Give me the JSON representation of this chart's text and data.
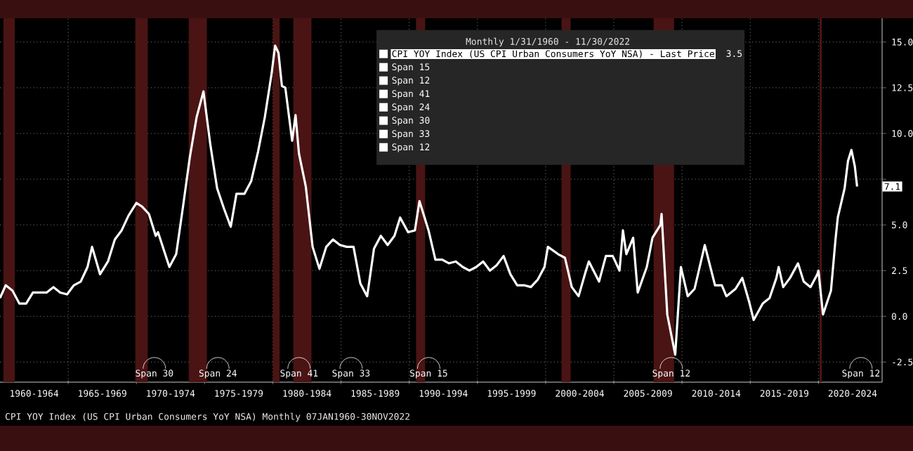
{
  "chart_data": {
    "type": "line",
    "legend_title": "Monthly 1/31/1960 - 11/30/2022",
    "legend": "top",
    "grid": true,
    "xlim": [
      "1960-01",
      "2024-09"
    ],
    "ylim": [
      -3.6,
      16.3
    ],
    "yticks": [
      -2.5,
      {
        "value": 0,
        "label": "0.0"
      },
      2.5,
      {
        "value": 5,
        "label": "5.0"
      },
      {
        "value": 7.5,
        "label": null
      },
      {
        "value": 10,
        "label": "10.0"
      },
      12.5,
      {
        "value": 15,
        "label": "15.0"
      }
    ],
    "xticks": [
      {
        "value": "1965-01",
        "label": null
      },
      {
        "value": "1970-01",
        "label": null
      },
      {
        "value": "1975-01",
        "label": null
      },
      {
        "value": "1980-01",
        "label": null
      },
      {
        "value": "1985-01",
        "label": null
      },
      {
        "value": "1990-01",
        "label": null
      },
      {
        "value": "1995-01",
        "label": null
      },
      {
        "value": "2000-01",
        "label": null
      },
      {
        "value": "2005-01",
        "label": null
      },
      {
        "value": "2010-01",
        "label": null
      },
      {
        "value": "2015-01",
        "label": null
      },
      {
        "value": "2020-01",
        "label": null
      },
      {
        "value": "1962-07",
        "label": "1960-1964"
      },
      {
        "value": "1967-07",
        "label": "1965-1969"
      },
      {
        "value": "1972-07",
        "label": "1970-1974"
      },
      {
        "value": "1977-07",
        "label": "1975-1979"
      },
      {
        "value": "1982-07",
        "label": "1980-1984"
      },
      {
        "value": "1987-07",
        "label": "1985-1989"
      },
      {
        "value": "1992-07",
        "label": "1990-1994"
      },
      {
        "value": "1997-07",
        "label": "1995-1999"
      },
      {
        "value": "2002-07",
        "label": "2000-2004"
      },
      {
        "value": "2007-07",
        "label": "2005-2009"
      },
      {
        "value": "2012-07",
        "label": "2010-2014"
      },
      {
        "value": "2017-07",
        "label": "2015-2019"
      },
      {
        "value": "2022-07",
        "label": "2020-2024"
      }
    ],
    "bands": [
      {
        "axis": "x",
        "from": "1960-04",
        "to": "1961-02",
        "color": "#4a1414"
      },
      {
        "axis": "x",
        "from": "1969-12",
        "to": "1970-11",
        "color": "#4a1414"
      },
      {
        "axis": "x",
        "from": "1973-11",
        "to": "1975-03",
        "color": "#4a1414"
      },
      {
        "axis": "x",
        "from": "1980-01",
        "to": "1980-07",
        "color": "#4a1414"
      },
      {
        "axis": "x",
        "from": "1981-07",
        "to": "1982-11",
        "color": "#4a1414"
      },
      {
        "axis": "x",
        "from": "1990-07",
        "to": "1991-03",
        "color": "#4a1414"
      },
      {
        "axis": "x",
        "from": "2001-03",
        "to": "2001-11",
        "color": "#4a1414"
      },
      {
        "axis": "x",
        "from": "2007-12",
        "to": "2009-06",
        "color": "#4a1414"
      },
      {
        "axis": "x",
        "from": "2020-02",
        "to": "2020-04",
        "color": "#4a1414"
      }
    ],
    "annotations": [
      "CPI YOY Index (US CPI Urban Consumers YoY NSA)  Monthly 07JAN1960-30NOV2022",
      "3.5",
      "Span 15",
      "Span 12",
      "Span 41",
      "Span 24",
      "Span 30",
      "Span 33",
      "Span 12",
      "Span 30",
      "Span 24",
      "Span 41",
      "Span 33",
      "Span 15",
      "Span 12",
      "Span 12",
      "7.1"
    ],
    "series": [
      {
        "name": "CPI YOY Index (US CPI Urban Consumers YoY NSA) - Last Price",
        "color": "#ffffff",
        "x": [
          "1960-01",
          "1960-06",
          "1960-12",
          "1961-06",
          "1961-12",
          "1962-06",
          "1962-12",
          "1963-06",
          "1963-12",
          "1964-06",
          "1964-12",
          "1965-06",
          "1965-12",
          "1966-06",
          "1966-10",
          "1967-05",
          "1967-12",
          "1968-06",
          "1968-12",
          "1969-06",
          "1970-01",
          "1970-06",
          "1970-12",
          "1971-06",
          "1971-08",
          "1972-06",
          "1972-12",
          "1973-06",
          "1973-12",
          "1974-06",
          "1974-12",
          "1975-06",
          "1975-12",
          "1976-06",
          "1976-12",
          "1977-05",
          "1977-12",
          "1978-06",
          "1978-12",
          "1979-06",
          "1979-12",
          "1980-03",
          "1980-06",
          "1980-09",
          "1980-12",
          "1981-06",
          "1981-09",
          "1981-12",
          "1982-06",
          "1982-12",
          "1983-06",
          "1983-12",
          "1984-06",
          "1984-12",
          "1985-06",
          "1985-12",
          "1986-06",
          "1986-12",
          "1987-06",
          "1987-12",
          "1988-06",
          "1988-12",
          "1989-05",
          "1989-12",
          "1990-06",
          "1990-10",
          "1991-06",
          "1991-12",
          "1992-06",
          "1992-12",
          "1993-06",
          "1993-12",
          "1994-06",
          "1994-12",
          "1995-06",
          "1995-12",
          "1996-06",
          "1996-12",
          "1997-06",
          "1997-12",
          "1998-06",
          "1998-12",
          "1999-06",
          "1999-12",
          "2000-03",
          "2000-12",
          "2001-06",
          "2001-12",
          "2002-06",
          "2002-12",
          "2003-03",
          "2003-12",
          "2004-06",
          "2004-12",
          "2005-06",
          "2005-09",
          "2005-12",
          "2006-06",
          "2006-10",
          "2007-06",
          "2007-11",
          "2008-06",
          "2008-07",
          "2008-12",
          "2009-07",
          "2009-12",
          "2010-06",
          "2010-12",
          "2011-09",
          "2012-06",
          "2012-12",
          "2013-04",
          "2013-12",
          "2014-06",
          "2014-12",
          "2015-04",
          "2015-12",
          "2016-06",
          "2016-12",
          "2017-02",
          "2017-06",
          "2017-12",
          "2018-07",
          "2018-12",
          "2019-06",
          "2019-12",
          "2020-01",
          "2020-05",
          "2020-12",
          "2021-04",
          "2021-06",
          "2021-12",
          "2022-03",
          "2022-06",
          "2022-09",
          "2022-11"
        ],
        "values": [
          1.0,
          1.7,
          1.4,
          0.7,
          0.7,
          1.3,
          1.3,
          1.3,
          1.6,
          1.3,
          1.2,
          1.7,
          1.9,
          2.7,
          3.8,
          2.3,
          3.0,
          4.2,
          4.7,
          5.5,
          6.2,
          6.0,
          5.6,
          4.4,
          4.6,
          2.7,
          3.4,
          6.0,
          8.7,
          10.9,
          12.3,
          9.4,
          7.0,
          5.9,
          4.9,
          6.7,
          6.7,
          7.4,
          9.0,
          10.9,
          13.3,
          14.8,
          14.4,
          12.6,
          12.5,
          9.6,
          11.0,
          8.9,
          7.1,
          3.8,
          2.6,
          3.8,
          4.2,
          3.9,
          3.8,
          3.8,
          1.8,
          1.1,
          3.7,
          4.4,
          3.9,
          4.4,
          5.4,
          4.6,
          4.7,
          6.3,
          4.7,
          3.1,
          3.1,
          2.9,
          3.0,
          2.7,
          2.5,
          2.7,
          3.0,
          2.5,
          2.8,
          3.3,
          2.3,
          1.7,
          1.7,
          1.6,
          2.0,
          2.7,
          3.8,
          3.4,
          3.2,
          1.6,
          1.1,
          2.4,
          3.0,
          1.9,
          3.3,
          3.3,
          2.5,
          4.7,
          3.4,
          4.3,
          1.3,
          2.7,
          4.3,
          5.0,
          5.6,
          0.1,
          -2.1,
          2.7,
          1.1,
          1.5,
          3.9,
          1.7,
          1.7,
          1.1,
          1.5,
          2.1,
          0.8,
          -0.2,
          0.7,
          1.0,
          2.1,
          2.7,
          1.6,
          2.1,
          2.9,
          1.9,
          1.6,
          2.3,
          2.5,
          0.1,
          1.4,
          4.2,
          5.4,
          7.0,
          8.5,
          9.1,
          8.2,
          7.1
        ]
      }
    ]
  }
}
